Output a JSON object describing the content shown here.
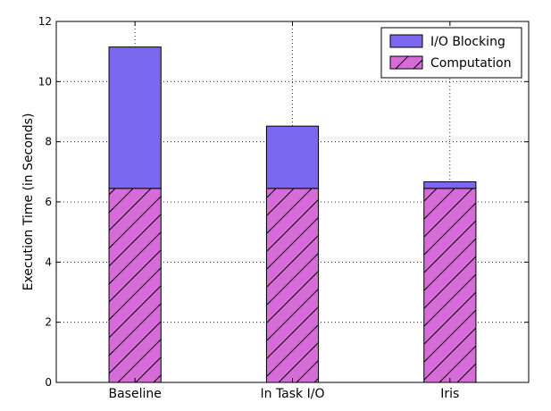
{
  "chart_data": {
    "type": "bar",
    "stacked": true,
    "categories": [
      "Baseline",
      "In Task I/O",
      "Iris"
    ],
    "series": [
      {
        "name": "Computation",
        "values": [
          6.45,
          6.45,
          6.45
        ],
        "color": "#d56cd8",
        "hatch": "diagonal"
      },
      {
        "name": "I/O Blocking",
        "values": [
          4.7,
          2.07,
          0.22
        ],
        "color": "#7b68ee"
      }
    ],
    "title": "",
    "xlabel": "",
    "ylabel": "Execution Time (in Seconds)",
    "ylim": [
      0,
      12
    ],
    "yticks": [
      0,
      2,
      4,
      6,
      8,
      10,
      12
    ],
    "grid": true,
    "legend": {
      "position": "top-right",
      "order": [
        "I/O Blocking",
        "Computation"
      ]
    }
  }
}
